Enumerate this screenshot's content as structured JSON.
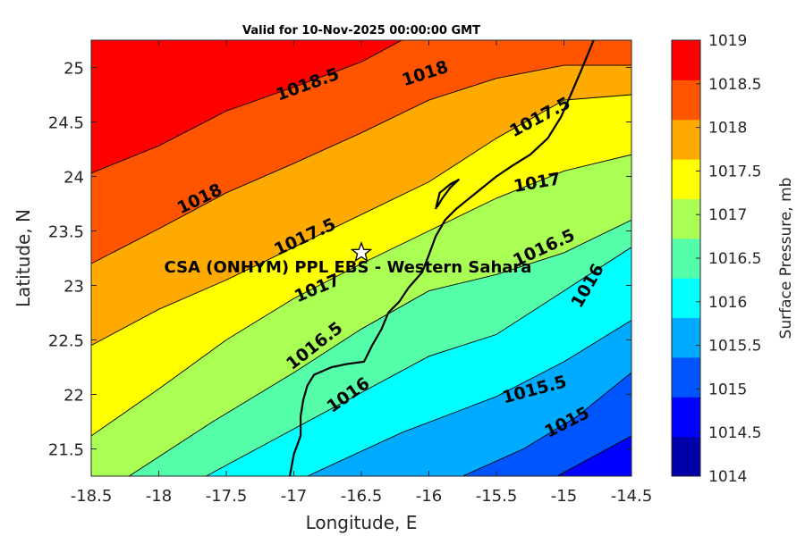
{
  "chart_data": {
    "type": "contour",
    "title": "Valid for 10-Nov-2025 00:00:00 GMT",
    "xlabel": "Longitude, E",
    "ylabel": "Latitude, N",
    "xlim": [
      -18.5,
      -14.5
    ],
    "ylim": [
      21.25,
      25.25
    ],
    "xticks": [
      "-18.5",
      "-18",
      "-17.5",
      "-17",
      "-16.5",
      "-16",
      "-15.5",
      "-15",
      "-14.5"
    ],
    "yticks": [
      "21.5",
      "22",
      "22.5",
      "23",
      "23.5",
      "24",
      "24.5",
      "25"
    ],
    "colorbar": {
      "label": "Surface Pressure, mb",
      "ticks": [
        "1014",
        "1014.5",
        "1015",
        "1015.5",
        "1016",
        "1016.5",
        "1017",
        "1017.5",
        "1018",
        "1018.5",
        "1019"
      ],
      "colors": [
        "#0000aa",
        "#0000ff",
        "#0055ff",
        "#00aaff",
        "#00ffff",
        "#55ffaa",
        "#aaff55",
        "#ffff00",
        "#ffaa00",
        "#ff5500",
        "#ff0000"
      ]
    },
    "contour_levels": [
      1014.5,
      1015,
      1015.5,
      1016,
      1016.5,
      1017,
      1017.5,
      1018,
      1018.5
    ],
    "contour_lines": [
      {
        "level": 1014.5,
        "points": [
          [
            -15.05,
            21.25
          ],
          [
            -14.5,
            21.62
          ]
        ]
      },
      {
        "level": 1015,
        "points": [
          [
            -15.75,
            21.25
          ],
          [
            -15.3,
            21.5
          ],
          [
            -14.9,
            21.8
          ],
          [
            -14.5,
            22.2
          ]
        ]
      },
      {
        "level": 1015.5,
        "points": [
          [
            -16.9,
            21.25
          ],
          [
            -16.2,
            21.65
          ],
          [
            -15.5,
            21.98
          ],
          [
            -15,
            22.3
          ],
          [
            -14.5,
            22.68
          ]
        ]
      },
      {
        "level": 1016,
        "points": [
          [
            -17.65,
            21.25
          ],
          [
            -17.2,
            21.55
          ],
          [
            -16.6,
            21.95
          ],
          [
            -16,
            22.35
          ],
          [
            -15.5,
            22.55
          ],
          [
            -15,
            22.95
          ],
          [
            -14.5,
            23.35
          ]
        ]
      },
      {
        "level": 1016.5,
        "points": [
          [
            -18.22,
            21.25
          ],
          [
            -17.6,
            21.75
          ],
          [
            -17,
            22.2
          ],
          [
            -16.5,
            22.6
          ],
          [
            -16,
            22.95
          ],
          [
            -15.5,
            23.1
          ],
          [
            -15,
            23.3
          ],
          [
            -14.5,
            23.6
          ]
        ]
      },
      {
        "level": 1017,
        "points": [
          [
            -18.5,
            21.62
          ],
          [
            -18,
            22.05
          ],
          [
            -17.5,
            22.5
          ],
          [
            -17,
            22.88
          ],
          [
            -16.5,
            23.2
          ],
          [
            -16,
            23.5
          ],
          [
            -15.5,
            23.8
          ],
          [
            -15,
            24.05
          ],
          [
            -14.5,
            24.2
          ]
        ]
      },
      {
        "level": 1017.5,
        "points": [
          [
            -18.5,
            22.45
          ],
          [
            -18,
            22.78
          ],
          [
            -17.5,
            23.05
          ],
          [
            -17,
            23.35
          ],
          [
            -16.5,
            23.65
          ],
          [
            -16,
            23.95
          ],
          [
            -15.5,
            24.35
          ],
          [
            -15,
            24.7
          ],
          [
            -14.5,
            24.75
          ]
        ]
      },
      {
        "level": 1018,
        "points": [
          [
            -18.5,
            23.2
          ],
          [
            -18,
            23.52
          ],
          [
            -17.5,
            23.85
          ],
          [
            -17,
            24.12
          ],
          [
            -16.5,
            24.4
          ],
          [
            -16,
            24.7
          ],
          [
            -15.5,
            24.9
          ],
          [
            -15,
            25.02
          ],
          [
            -14.5,
            25.02
          ]
        ]
      },
      {
        "level": 1018.5,
        "points": [
          [
            -18.5,
            24.03
          ],
          [
            -18,
            24.28
          ],
          [
            -17.5,
            24.6
          ],
          [
            -17,
            24.82
          ],
          [
            -16.5,
            25.05
          ],
          [
            -16.2,
            25.25
          ]
        ]
      }
    ],
    "contour_labels": [
      {
        "text": "1018.5",
        "lon": -16.9,
        "lat": 24.85,
        "angle": -20
      },
      {
        "text": "1018",
        "lon": -16.03,
        "lat": 24.95,
        "angle": -18
      },
      {
        "text": "1017.5",
        "lon": -15.18,
        "lat": 24.55,
        "angle": -28
      },
      {
        "text": "1018",
        "lon": -17.7,
        "lat": 23.8,
        "angle": -26
      },
      {
        "text": "1017",
        "lon": -15.2,
        "lat": 23.95,
        "angle": -10
      },
      {
        "text": "1017.5",
        "lon": -16.92,
        "lat": 23.45,
        "angle": -25
      },
      {
        "text": "1016.5",
        "lon": -15.15,
        "lat": 23.35,
        "angle": -25
      },
      {
        "text": "1016",
        "lon": -14.83,
        "lat": 23.0,
        "angle": -60
      },
      {
        "text": "1017",
        "lon": -16.83,
        "lat": 22.98,
        "angle": -23
      },
      {
        "text": "1016.5",
        "lon": -16.85,
        "lat": 22.45,
        "angle": -38
      },
      {
        "text": "1016",
        "lon": -16.6,
        "lat": 22.0,
        "angle": -35
      },
      {
        "text": "1015.5",
        "lon": -15.22,
        "lat": 22.05,
        "angle": -15
      },
      {
        "text": "1015",
        "lon": -14.98,
        "lat": 21.75,
        "angle": -27
      }
    ],
    "coastline": [
      [
        -17.03,
        21.25
      ],
      [
        -17.0,
        21.45
      ],
      [
        -16.95,
        21.62
      ],
      [
        -16.95,
        21.8
      ],
      [
        -16.93,
        21.95
      ],
      [
        -16.9,
        22.08
      ],
      [
        -16.85,
        22.18
      ],
      [
        -16.72,
        22.25
      ],
      [
        -16.6,
        22.28
      ],
      [
        -16.48,
        22.3
      ],
      [
        -16.42,
        22.45
      ],
      [
        -16.35,
        22.6
      ],
      [
        -16.3,
        22.75
      ],
      [
        -16.22,
        22.85
      ],
      [
        -16.15,
        22.98
      ],
      [
        -16.05,
        23.12
      ],
      [
        -16.0,
        23.28
      ],
      [
        -15.95,
        23.45
      ],
      [
        -15.88,
        23.6
      ],
      [
        -15.8,
        23.7
      ],
      [
        -15.72,
        23.78
      ],
      [
        -15.62,
        23.88
      ],
      [
        -15.5,
        24.0
      ],
      [
        -15.38,
        24.1
      ],
      [
        -15.25,
        24.2
      ],
      [
        -15.12,
        24.35
      ],
      [
        -15.02,
        24.55
      ],
      [
        -14.95,
        24.75
      ],
      [
        -14.88,
        24.95
      ],
      [
        -14.83,
        25.1
      ],
      [
        -14.78,
        25.25
      ]
    ],
    "dakhla_peninsula": [
      [
        -15.95,
        23.7
      ],
      [
        -15.92,
        23.85
      ],
      [
        -15.84,
        23.93
      ],
      [
        -15.78,
        23.97
      ],
      [
        -15.84,
        23.9
      ],
      [
        -15.9,
        23.8
      ],
      [
        -15.94,
        23.72
      ]
    ],
    "site": {
      "name": "CSA (ONHYM) PPL EBS  - Western Sahara",
      "lon": -16.5,
      "lat": 23.3
    }
  }
}
